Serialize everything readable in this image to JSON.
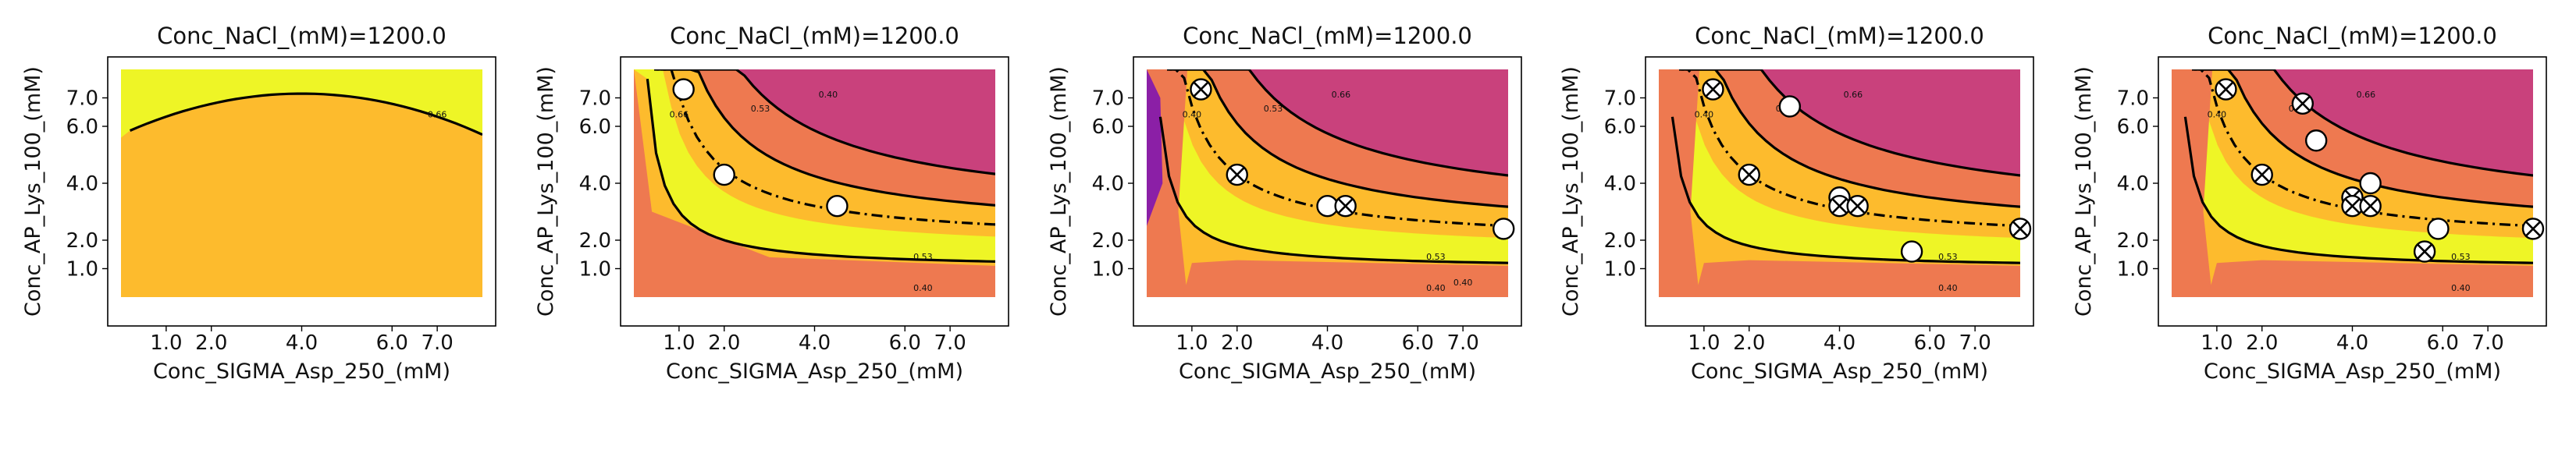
{
  "colors": {
    "level_purple": "#8b1fa6",
    "level_magenta": "#c9417c",
    "level_salmon": "#ee7950",
    "level_orange": "#fdbb2d",
    "level_yellow": "#eef526",
    "contour_line": "#000000",
    "marker_fill": "#ffffff"
  },
  "chart_data": [
    {
      "type": "contour",
      "title": "Conc_NaCl_(mM)=1200.0",
      "xlabel": "Conc_SIGMA_Asp_250_(mM)",
      "ylabel": "Conc_AP_Lys_100_(mM)",
      "xticks": [
        "1.0",
        "2.0",
        "4.0",
        "6.0",
        "7.0"
      ],
      "yticks": [
        "1.0",
        "2.0",
        "4.0",
        "6.0",
        "7.0"
      ],
      "contour_labels": [
        "0.66"
      ],
      "points": []
    },
    {
      "type": "contour",
      "title": "Conc_NaCl_(mM)=1200.0",
      "xlabel": "Conc_SIGMA_Asp_250_(mM)",
      "ylabel": "Conc_AP_Lys_100_(mM)",
      "xticks": [
        "1.0",
        "2.0",
        "4.0",
        "6.0",
        "7.0"
      ],
      "yticks": [
        "1.0",
        "2.0",
        "4.0",
        "6.0",
        "7.0"
      ],
      "contour_labels": [
        "0.66",
        "0.53",
        "0.40",
        "0.53",
        "0.40"
      ],
      "points": [
        {
          "x": 1.1,
          "y": 7.3,
          "marker": "circle"
        },
        {
          "x": 2.0,
          "y": 4.3,
          "marker": "circle"
        },
        {
          "x": 4.5,
          "y": 3.2,
          "marker": "circle"
        }
      ]
    },
    {
      "type": "contour",
      "title": "Conc_NaCl_(mM)=1200.0",
      "xlabel": "Conc_SIGMA_Asp_250_(mM)",
      "ylabel": "Conc_AP_Lys_100_(mM)",
      "xticks": [
        "1.0",
        "2.0",
        "4.0",
        "6.0",
        "7.0"
      ],
      "yticks": [
        "1.0",
        "2.0",
        "4.0",
        "6.0",
        "7.0"
      ],
      "contour_labels": [
        "0.40",
        "0.53",
        "0.66",
        "0.53",
        "0.40",
        "0.40"
      ],
      "points": [
        {
          "x": 1.2,
          "y": 7.3,
          "marker": "x"
        },
        {
          "x": 2.0,
          "y": 4.3,
          "marker": "x"
        },
        {
          "x": 4.0,
          "y": 3.2,
          "marker": "circle"
        },
        {
          "x": 4.4,
          "y": 3.2,
          "marker": "x"
        },
        {
          "x": 7.9,
          "y": 2.4,
          "marker": "circle"
        }
      ]
    },
    {
      "type": "contour",
      "title": "Conc_NaCl_(mM)=1200.0",
      "xlabel": "Conc_SIGMA_Asp_250_(mM)",
      "ylabel": "Conc_AP_Lys_100_(mM)",
      "xticks": [
        "1.0",
        "2.0",
        "4.0",
        "6.0",
        "7.0"
      ],
      "yticks": [
        "1.0",
        "2.0",
        "4.0",
        "6.0",
        "7.0"
      ],
      "contour_labels": [
        "0.40",
        "0.53",
        "0.66",
        "0.53",
        "0.40"
      ],
      "points": [
        {
          "x": 1.2,
          "y": 7.3,
          "marker": "x"
        },
        {
          "x": 2.0,
          "y": 4.3,
          "marker": "x"
        },
        {
          "x": 2.9,
          "y": 6.7,
          "marker": "circle"
        },
        {
          "x": 4.0,
          "y": 3.5,
          "marker": "circle"
        },
        {
          "x": 4.0,
          "y": 3.2,
          "marker": "x"
        },
        {
          "x": 4.4,
          "y": 3.2,
          "marker": "x"
        },
        {
          "x": 5.6,
          "y": 1.6,
          "marker": "circle"
        },
        {
          "x": 8.0,
          "y": 2.4,
          "marker": "x"
        }
      ]
    },
    {
      "type": "contour",
      "title": "Conc_NaCl_(mM)=1200.0",
      "xlabel": "Conc_SIGMA_Asp_250_(mM)",
      "ylabel": "Conc_AP_Lys_100_(mM)",
      "xticks": [
        "1.0",
        "2.0",
        "4.0",
        "6.0",
        "7.0"
      ],
      "yticks": [
        "1.0",
        "2.0",
        "4.0",
        "6.0",
        "7.0"
      ],
      "contour_labels": [
        "0.40",
        "0.53",
        "0.66",
        "0.53",
        "0.40"
      ],
      "points": [
        {
          "x": 1.2,
          "y": 7.3,
          "marker": "x"
        },
        {
          "x": 2.0,
          "y": 4.3,
          "marker": "x"
        },
        {
          "x": 2.9,
          "y": 6.8,
          "marker": "x"
        },
        {
          "x": 3.2,
          "y": 5.5,
          "marker": "circle"
        },
        {
          "x": 4.0,
          "y": 3.5,
          "marker": "x"
        },
        {
          "x": 4.0,
          "y": 3.2,
          "marker": "x"
        },
        {
          "x": 4.4,
          "y": 3.2,
          "marker": "x"
        },
        {
          "x": 4.4,
          "y": 4.0,
          "marker": "circle"
        },
        {
          "x": 5.6,
          "y": 1.6,
          "marker": "x"
        },
        {
          "x": 5.9,
          "y": 2.4,
          "marker": "circle"
        },
        {
          "x": 8.0,
          "y": 2.4,
          "marker": "x"
        }
      ]
    }
  ]
}
